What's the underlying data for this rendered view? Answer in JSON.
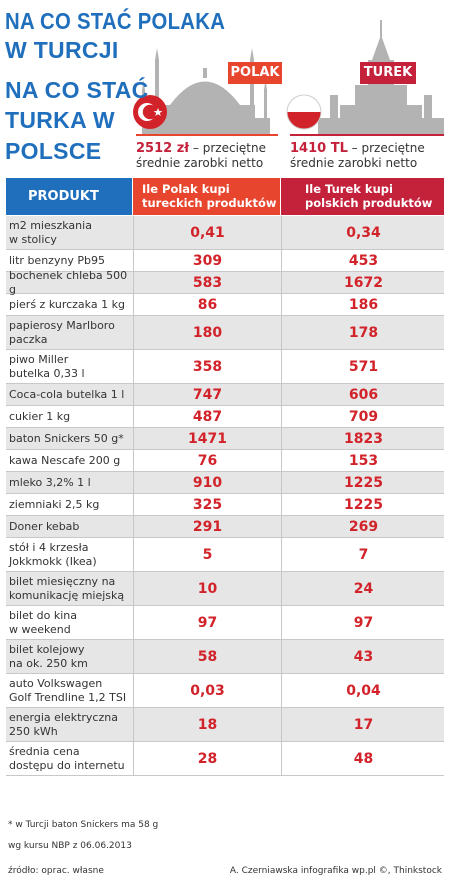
{
  "title": {
    "line1": "NA CO STAĆ POLAKA",
    "line2": "W TURCJI",
    "line3": "NA CO STAĆ",
    "line4": "TURKA W",
    "line5": "POLSCE"
  },
  "tags": {
    "polak": "POLAK",
    "turek": "TUREK"
  },
  "income": {
    "polak_amount": "2512 zł",
    "polak_text1": " – przeciętne",
    "polak_text2": "średnie zarobki netto",
    "turek_amount": "1410 TL",
    "turek_text1": " – przeciętne",
    "turek_text2": "średnie zarobki netto"
  },
  "table": {
    "header_product": "PRODUKT",
    "header_polak1": "Ile Polak kupi",
    "header_polak2": "tureckich produktów",
    "header_turek1": "Ile Turek kupi",
    "header_turek2": "polskich produktów",
    "rows": [
      {
        "l1": "m2 mieszkania",
        "l2": "w stolicy",
        "polak": "0,41",
        "turek": "0,34"
      },
      {
        "l1": "litr benzyny Pb95",
        "l2": "",
        "polak": "309",
        "turek": "453"
      },
      {
        "l1": "bochenek chleba 500 g",
        "l2": "",
        "polak": "583",
        "turek": "1672"
      },
      {
        "l1": "pierś z kurczaka 1 kg",
        "l2": "",
        "polak": "86",
        "turek": "186"
      },
      {
        "l1": "papierosy Marlboro",
        "l2": "paczka",
        "polak": "180",
        "turek": "178"
      },
      {
        "l1": "piwo Miller",
        "l2": "butelka 0,33 l",
        "polak": "358",
        "turek": "571"
      },
      {
        "l1": "Coca-cola butelka 1 l",
        "l2": "",
        "polak": "747",
        "turek": "606"
      },
      {
        "l1": "cukier 1 kg",
        "l2": "",
        "polak": "487",
        "turek": "709"
      },
      {
        "l1": "baton Snickers 50 g*",
        "l2": "",
        "polak": "1471",
        "turek": "1823"
      },
      {
        "l1": "kawa Nescafe 200 g",
        "l2": "",
        "polak": "76",
        "turek": "153"
      },
      {
        "l1": "mleko 3,2% 1 l",
        "l2": "",
        "polak": "910",
        "turek": "1225"
      },
      {
        "l1": "ziemniaki 2,5 kg",
        "l2": "",
        "polak": "325",
        "turek": "1225"
      },
      {
        "l1": "Doner kebab",
        "l2": "",
        "polak": "291",
        "turek": "269"
      },
      {
        "l1": "stół i 4 krzesła",
        "l2": "Jokkmokk (Ikea)",
        "polak": "5",
        "turek": "7"
      },
      {
        "l1": "bilet miesięczny na",
        "l2": "komunikację miejską",
        "polak": "10",
        "turek": "24"
      },
      {
        "l1": "bilet do kina",
        "l2": "w weekend",
        "polak": "97",
        "turek": "97"
      },
      {
        "l1": "bilet kolejowy",
        "l2": "na ok. 250 km",
        "polak": "58",
        "turek": "43"
      },
      {
        "l1": "auto Volkswagen",
        "l2": "Golf Trendline 1,2 TSI",
        "polak": "0,03",
        "turek": "0,04"
      },
      {
        "l1": "energia elektryczna",
        "l2": "250 kWh",
        "polak": "18",
        "turek": "17"
      },
      {
        "l1": "średnia cena",
        "l2": "dostępu do internetu",
        "polak": "28",
        "turek": "48"
      }
    ]
  },
  "notes": {
    "footnote": "* w Turcji baton Snickers ma 58 g",
    "rate": "wg kursu NBP z 06.06.2013",
    "source": "źródło: oprac. własne",
    "credit": "A. Czerniawska infografika wp.pl ©, Thinkstock"
  },
  "colors": {
    "blue": "#1f6fbd",
    "polak_red": "#e8452f",
    "turek_red": "#c4213a",
    "value_red": "#d2232a"
  }
}
